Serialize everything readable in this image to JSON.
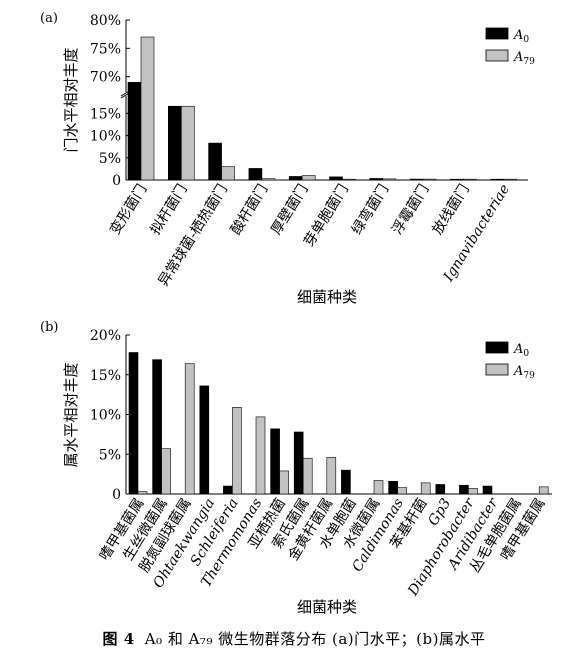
{
  "chart_data": [
    {
      "panel_label": "(a)",
      "type": "bar",
      "ylabel": "门水平相对丰度",
      "xlabel": "细菌种类",
      "y_axis_break": true,
      "ylim_lower": [
        0,
        18
      ],
      "ylim_upper": [
        68,
        80
      ],
      "yticks_lower": [
        "0",
        "5%",
        "10%",
        "15%"
      ],
      "yticks_upper": [
        "70%",
        "75%",
        "80%"
      ],
      "legend_position": "top-right",
      "categories": [
        "变形菌门",
        "拟杆菌门",
        "异常球菌-栖热菌门",
        "酸杆菌门",
        "厚壁菌门",
        "芽单胞菌门",
        "绿弯菌门",
        "浮霉菌门",
        "放线菌门",
        "Ignavibacteriae"
      ],
      "series": [
        {
          "name": "A0",
          "color": "#000000",
          "values": [
            69.0,
            16.6,
            8.3,
            2.6,
            0.8,
            0.7,
            0.35,
            0.2,
            0.15,
            0.12
          ]
        },
        {
          "name": "A79",
          "color": "#c2c2c2",
          "values": [
            77.0,
            16.6,
            3.0,
            0.3,
            1.0,
            0.1,
            0.25,
            0.2,
            0.15,
            0.1
          ]
        }
      ]
    },
    {
      "panel_label": "(b)",
      "type": "bar",
      "ylabel": "属水平相对丰度",
      "xlabel": "细菌种类",
      "ylim": [
        0,
        20
      ],
      "yticks": [
        "0",
        "5%",
        "10%",
        "15%",
        "20%"
      ],
      "legend_position": "top-right",
      "categories": [
        "嗜甲基菌属",
        "生丝微菌属",
        "脱氮副球菌属",
        "Ohtaekwangia",
        "Schleiferia",
        "Thermomonas",
        "亚栖热菌",
        "索氏菌属",
        "金黄杆菌属",
        "水单胞菌",
        "水微菌属",
        "Caldimonas",
        "苯基杆菌",
        "Gp3",
        "Diaphorobacter",
        "Aridibacter",
        "丛毛单胞菌属",
        "嗜甲基菌属"
      ],
      "series": [
        {
          "name": "A0",
          "color": "#000000",
          "values": [
            17.8,
            16.9,
            0.0,
            13.6,
            1.0,
            0.0,
            8.2,
            7.8,
            0.0,
            3.0,
            0.0,
            1.6,
            0.0,
            1.2,
            1.1,
            1.0,
            0.0,
            0.0
          ]
        },
        {
          "name": "A79",
          "color": "#c2c2c2",
          "values": [
            0.3,
            5.7,
            16.4,
            0.0,
            10.9,
            9.7,
            2.9,
            4.5,
            4.6,
            0.0,
            1.7,
            0.8,
            1.4,
            0.0,
            0.7,
            0.0,
            0.0,
            0.9
          ]
        }
      ]
    }
  ],
  "caption": {
    "label": "图 4",
    "text": "A₀ 和 A₇₉ 微生物群落分布 (a)门水平；(b)属水平"
  }
}
